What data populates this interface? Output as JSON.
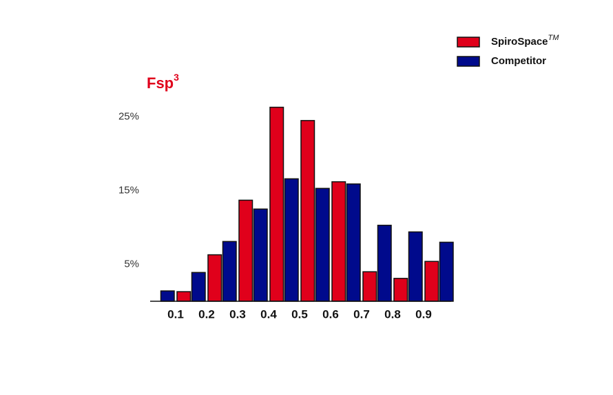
{
  "chart_data": {
    "type": "histogram",
    "title": "Fsp",
    "title_superscript": "3",
    "bins": [
      0,
      0.1,
      0.2,
      0.3,
      0.4,
      0.5,
      0.6,
      0.7,
      0.8,
      0.9,
      1.0
    ],
    "series": [
      {
        "name": "SpiroSpace",
        "name_superscript": "TM",
        "color": "#e0001b",
        "values": [
          0,
          1.3,
          6.3,
          13.7,
          26.3,
          24.5,
          16.2,
          4.0,
          3.1,
          5.4
        ]
      },
      {
        "name": "Competitor",
        "color": "#000a8c",
        "values": [
          1.4,
          3.9,
          8.1,
          12.5,
          16.6,
          15.3,
          15.9,
          10.3,
          9.4,
          8.0
        ]
      }
    ],
    "xlim": [
      0,
      1.0
    ],
    "xticks": [
      0.1,
      0.2,
      0.3,
      0.4,
      0.5,
      0.6,
      0.7,
      0.8,
      0.9
    ],
    "ylim": [
      0,
      27
    ],
    "yticks": [
      {
        "value": 5,
        "label": "5%"
      },
      {
        "value": 15,
        "label": "15%"
      },
      {
        "value": 25,
        "label": "25%"
      }
    ],
    "grid": false,
    "legend": "upper right"
  }
}
